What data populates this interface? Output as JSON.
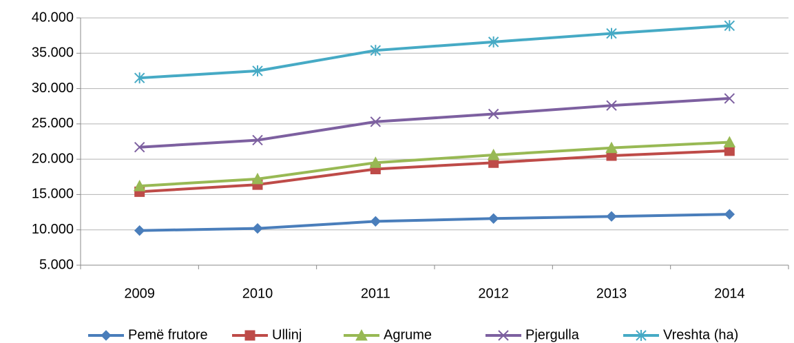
{
  "chart_data": {
    "type": "line",
    "categories": [
      "2009",
      "2010",
      "2011",
      "2012",
      "2013",
      "2014"
    ],
    "series": [
      {
        "name": "Pemë frutore",
        "color": "#4a7ebb",
        "marker": "diamond",
        "values": [
          9900,
          10200,
          11200,
          11600,
          11900,
          12200
        ]
      },
      {
        "name": "Ullinj",
        "color": "#be4b48",
        "marker": "square",
        "values": [
          15400,
          16400,
          18600,
          19500,
          20500,
          21200
        ]
      },
      {
        "name": "Agrume",
        "color": "#98b954",
        "marker": "triangle",
        "values": [
          16200,
          17200,
          19500,
          20600,
          21600,
          22400
        ]
      },
      {
        "name": "Pjergulla",
        "color": "#7d60a0",
        "marker": "x",
        "values": [
          21700,
          22700,
          25300,
          26400,
          27600,
          28600
        ]
      },
      {
        "name": "Vreshta (ha)",
        "color": "#46aac5",
        "marker": "star",
        "values": [
          31500,
          32500,
          35400,
          36600,
          37800,
          38900
        ]
      }
    ],
    "ylim": [
      5000,
      40000
    ],
    "yticks": [
      {
        "value": 5000,
        "label": "5.000"
      },
      {
        "value": 10000,
        "label": "10.000"
      },
      {
        "value": 15000,
        "label": "15.000"
      },
      {
        "value": 20000,
        "label": "20.000"
      },
      {
        "value": 25000,
        "label": "25.000"
      },
      {
        "value": 30000,
        "label": "30.000"
      },
      {
        "value": 35000,
        "label": "35.000"
      },
      {
        "value": 40000,
        "label": "40.000"
      }
    ],
    "grid": true,
    "legend": "bottom"
  }
}
